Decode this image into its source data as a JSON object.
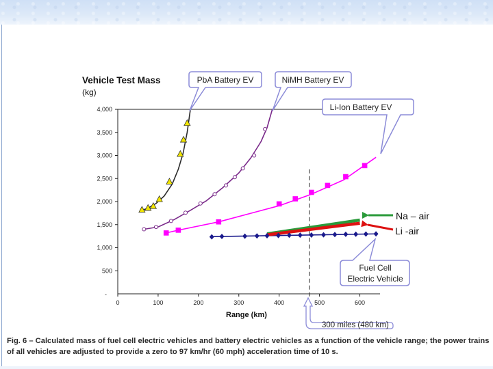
{
  "slide": {
    "caption": "Fig. 6 – Calculated mass of fuel cell electric vehicles and battery electric vehicles as a function of the vehicle range; the power trains of all vehicles are adjusted to provide a zero to 97 km/hr (60 mph) acceleration time of 10 s."
  },
  "colors": {
    "pba": "#2b2b2b",
    "pba_marker": "#f2e600",
    "nimh": "#7a2a8a",
    "liion": "#ff00ff",
    "fuelcell": "#1a1a8c",
    "na_air": "#2a9a3a",
    "li_air": "#dd1111",
    "bubble_border": "#8c8cd8"
  },
  "chart_data": {
    "type": "line",
    "title": "Vehicle Test Mass",
    "ylabel": "(kg)",
    "xlabel": "Range (km)",
    "xlim": [
      0,
      650
    ],
    "ylim": [
      0,
      4000
    ],
    "xticks": [
      0,
      100,
      200,
      300,
      400,
      500,
      600
    ],
    "yticks": [
      500,
      1000,
      1500,
      2000,
      2500,
      3000,
      3500,
      4000
    ],
    "ytick_labels": [
      "500",
      "1,000",
      "1,500",
      "2,000",
      "2,500",
      "3,000",
      "3,500",
      "4,000"
    ],
    "bottom_tick_label": "-",
    "reference_line": {
      "x": 475,
      "label": "300 miles (480 km)"
    },
    "series": [
      {
        "name": "PbA Battery EV",
        "key": "pba",
        "marker": "triangle",
        "line_x": [
          57,
          75,
          95,
          115,
          135,
          150,
          162,
          172,
          180
        ],
        "line_y": [
          1800,
          1860,
          1960,
          2120,
          2380,
          2700,
          3050,
          3500,
          4000
        ],
        "marker_x": [
          60,
          75,
          88,
          103,
          128,
          155,
          163,
          172
        ],
        "marker_y": [
          1820,
          1860,
          1900,
          2050,
          2430,
          3030,
          3340,
          3700
        ]
      },
      {
        "name": "NiMH Battery EV",
        "key": "nimh",
        "marker": "circle-open",
        "line_x": [
          65,
          100,
          140,
          180,
          220,
          260,
          300,
          330,
          355,
          370,
          383
        ],
        "line_y": [
          1400,
          1450,
          1610,
          1810,
          2020,
          2300,
          2620,
          2950,
          3300,
          3600,
          4000
        ],
        "marker_x": [
          65,
          95,
          132,
          168,
          205,
          240,
          268,
          290,
          310,
          338,
          365
        ],
        "marker_y": [
          1400,
          1450,
          1580,
          1760,
          1960,
          2160,
          2350,
          2530,
          2720,
          3000,
          3570
        ]
      },
      {
        "name": "Li-Ion Battery EV",
        "key": "liion",
        "marker": "square",
        "line_x": [
          120,
          150,
          250,
          400,
          480,
          560,
          640
        ],
        "line_y": [
          1320,
          1380,
          1560,
          1910,
          2160,
          2470,
          2960
        ],
        "marker_x": [
          120,
          150,
          250,
          400,
          440,
          480,
          520,
          565,
          612
        ],
        "marker_y": [
          1320,
          1380,
          1560,
          1950,
          2060,
          2200,
          2350,
          2540,
          2780
        ]
      },
      {
        "name": "Fuel Cell Electric Vehicle",
        "key": "fuelcell",
        "marker": "diamond",
        "line_x": [
          230,
          640
        ],
        "line_y": [
          1240,
          1300
        ],
        "marker_x": [
          233,
          258,
          315,
          345,
          370,
          398,
          425,
          452,
          480,
          510,
          538,
          565,
          590,
          615,
          640
        ],
        "marker_y": [
          1235,
          1245,
          1250,
          1255,
          1260,
          1265,
          1270,
          1272,
          1275,
          1280,
          1285,
          1290,
          1292,
          1296,
          1300
        ]
      },
      {
        "name": "Na – air",
        "key": "na_air",
        "marker": "none",
        "line_x": [
          370,
          600
        ],
        "line_y": [
          1300,
          1600
        ]
      },
      {
        "name": "Li -air",
        "key": "li_air",
        "marker": "none",
        "line_x": [
          370,
          600
        ],
        "line_y": [
          1280,
          1530
        ]
      }
    ],
    "callouts": [
      "PbA Battery EV",
      "NiMH Battery EV",
      "Li-Ion Battery EV",
      "Fuel Cell",
      "Electric Vehicle"
    ],
    "arrow_labels": [
      "Na – air",
      "Li -air"
    ]
  }
}
